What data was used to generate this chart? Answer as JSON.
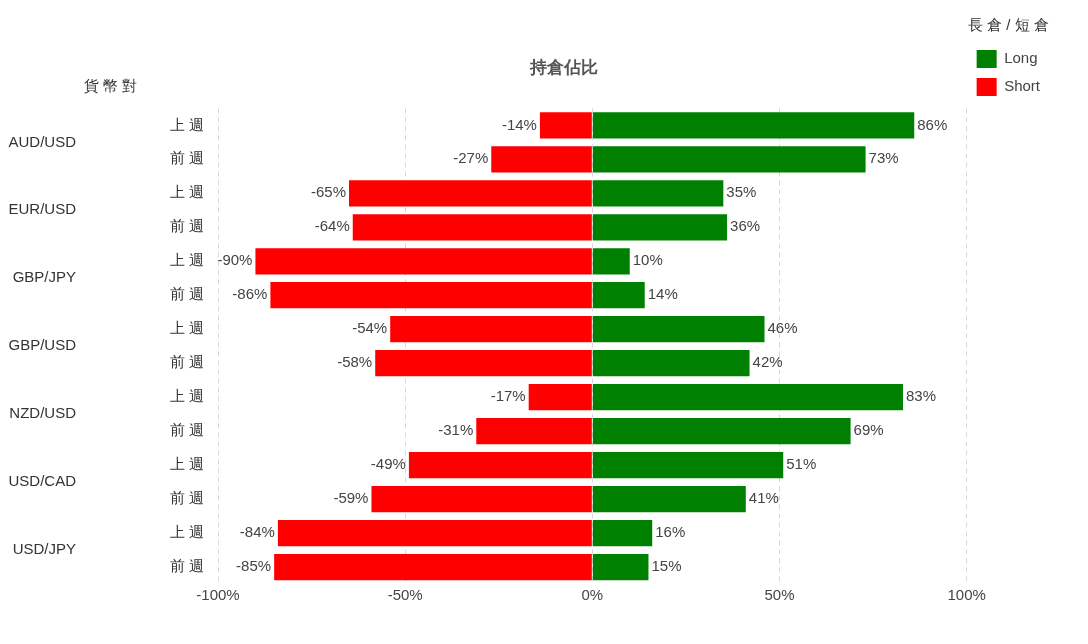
{
  "chart_data": {
    "type": "bar",
    "orientation": "horizontal",
    "stacked": true,
    "title": "持倉佔比",
    "ylabel": "貨 幣 對",
    "legend_title": "長 倉 / 短 倉",
    "legend": "top right",
    "grid": "x",
    "categories": [
      "上 週",
      "前 週",
      "上 週",
      "前 週",
      "上 週",
      "前 週",
      "上 週",
      "前 週",
      "上 週",
      "前 週",
      "上 週",
      "前 週",
      "上 週",
      "前 週"
    ],
    "annotations": [
      "AUD/USD",
      "EUR/USD",
      "GBP/JPY",
      "GBP/USD",
      "NZD/USD",
      "USD/CAD",
      "USD/JPY"
    ],
    "xlim": [
      -100,
      100
    ],
    "xticks": [
      {
        "value": -100,
        "label": "-100%"
      },
      {
        "value": -50,
        "label": "-50%"
      },
      {
        "value": 0,
        "label": "0%"
      },
      {
        "value": 50,
        "label": "50%"
      },
      {
        "value": 100,
        "label": "100%"
      }
    ],
    "series": [
      {
        "name": "Long",
        "color": "#008000",
        "values": [
          86,
          73,
          35,
          36,
          10,
          14,
          46,
          42,
          83,
          69,
          51,
          41,
          16,
          15
        ],
        "value_labels": [
          "86%",
          "73%",
          "35%",
          "36%",
          "10%",
          "14%",
          "46%",
          "42%",
          "83%",
          "69%",
          "51%",
          "41%",
          "16%",
          "15%"
        ]
      },
      {
        "name": "Short",
        "color": "#ff0000",
        "values": [
          -14,
          -27,
          -65,
          -64,
          -90,
          -86,
          -54,
          -58,
          -17,
          -31,
          -49,
          -59,
          -84,
          -85
        ],
        "value_labels": [
          "-14%",
          "-27%",
          "-65%",
          "-64%",
          "-90%",
          "-86%",
          "-54%",
          "-58%",
          "-17%",
          "-31%",
          "-49%",
          "-59%",
          "-84%",
          "-85%"
        ]
      }
    ]
  }
}
